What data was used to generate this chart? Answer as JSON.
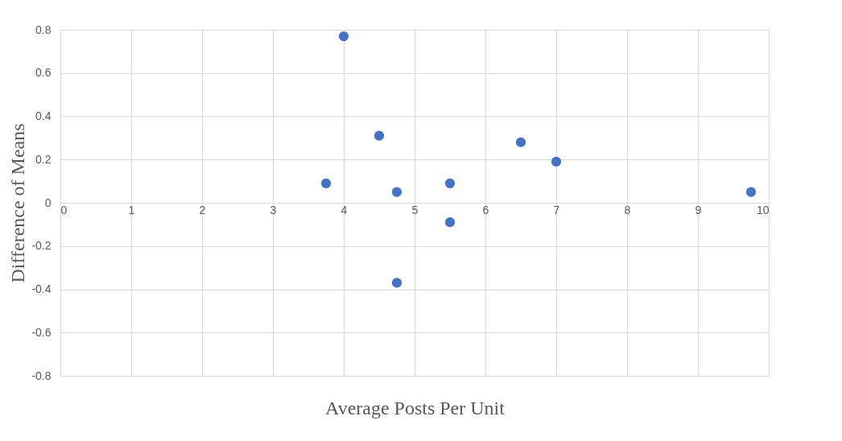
{
  "chart_data": {
    "type": "scatter",
    "xlabel": "Average Posts Per Unit",
    "ylabel": "Difference of Means",
    "x": [
      3.75,
      4,
      4.5,
      4.75,
      4.75,
      5.5,
      5.5,
      6.5,
      7,
      9.75
    ],
    "series": [
      {
        "color": "#4472c4",
        "values": [
          0.09,
          0.77,
          0.31,
          0.05,
          -0.37,
          0.09,
          -0.09,
          0.28,
          0.19,
          0.05
        ]
      }
    ],
    "xlim": [
      0,
      10
    ],
    "xticks": [
      0,
      1,
      2,
      3,
      4,
      5,
      6,
      7,
      8,
      9,
      10
    ],
    "ylim": [
      -0.8,
      0.8
    ],
    "yticks": [
      -0.8,
      -0.6,
      -0.4,
      -0.2,
      0,
      0.2,
      0.4,
      0.6,
      0.8
    ],
    "grid": true,
    "marker": "circle",
    "legend": false
  }
}
